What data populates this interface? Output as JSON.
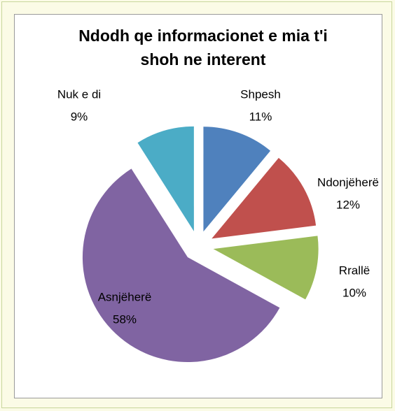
{
  "chart_data": {
    "type": "pie",
    "title": "Ndodh qe informacionet e mia t'i shoh ne interent",
    "categories": [
      "Shpesh",
      "Ndonjëherë",
      "Rrallë",
      "Asnjëherë",
      "Nuk e di"
    ],
    "values": [
      11,
      12,
      10,
      58,
      9
    ],
    "value_labels": [
      "11%",
      "12%",
      "10%",
      "58%",
      "9%"
    ],
    "colors": [
      "#4f81bd",
      "#c0504d",
      "#9bbb59",
      "#8064a2",
      "#4bacc6"
    ],
    "exploded": true
  }
}
